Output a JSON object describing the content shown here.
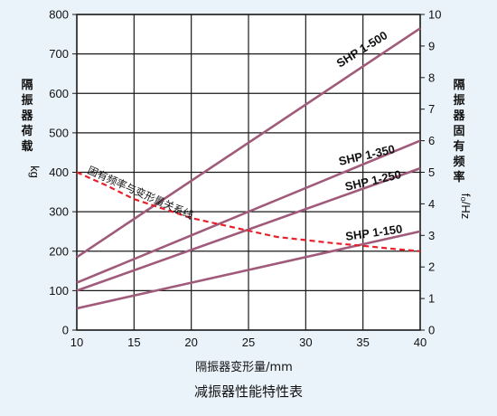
{
  "chart_data": {
    "type": "line",
    "title": "减振器性能特性表",
    "xlabel": "隔振器变形量/mm",
    "ylabel_left": "隔振器荷载",
    "ylabel_left_unit": "kg",
    "ylabel_right": "隔振器固有频率",
    "ylabel_right_unit": "f₀/Hz",
    "xlim": [
      10,
      40
    ],
    "ylim_left": [
      0,
      800
    ],
    "ylim_right": [
      0,
      10
    ],
    "x_ticks": [
      "10",
      "15",
      "20",
      "25",
      "30",
      "35",
      "40"
    ],
    "y_left_ticks": [
      "0",
      "100",
      "200",
      "300",
      "400",
      "500",
      "600",
      "700",
      "800"
    ],
    "y_right_ticks": [
      "0",
      "1",
      "2",
      "3",
      "4",
      "5",
      "6",
      "7",
      "8",
      "9",
      "10"
    ],
    "grid": true,
    "series": [
      {
        "name": "SHP 1-500",
        "axis": "left",
        "color": "#a05a7a",
        "x": [
          10,
          40
        ],
        "y": [
          185,
          765
        ]
      },
      {
        "name": "SHP 1-350",
        "axis": "left",
        "color": "#a05a7a",
        "x": [
          10,
          40
        ],
        "y": [
          120,
          480
        ]
      },
      {
        "name": "SHP 1-250",
        "axis": "left",
        "color": "#a05a7a",
        "x": [
          10,
          40
        ],
        "y": [
          100,
          410
        ]
      },
      {
        "name": "SHP 1-150",
        "axis": "left",
        "color": "#a05a7a",
        "x": [
          10,
          40
        ],
        "y": [
          55,
          250
        ]
      },
      {
        "name": "固有频率与变形量关系线",
        "axis": "right",
        "color": "#e8202a",
        "dashed": true,
        "x": [
          10,
          12.5,
          15,
          17.5,
          20,
          22.5,
          25,
          27.5,
          30,
          32.5,
          35,
          37.5,
          40
        ],
        "y": [
          5.0,
          4.6,
          4.15,
          3.85,
          3.55,
          3.35,
          3.15,
          2.95,
          2.85,
          2.75,
          2.67,
          2.58,
          2.5
        ]
      }
    ]
  }
}
